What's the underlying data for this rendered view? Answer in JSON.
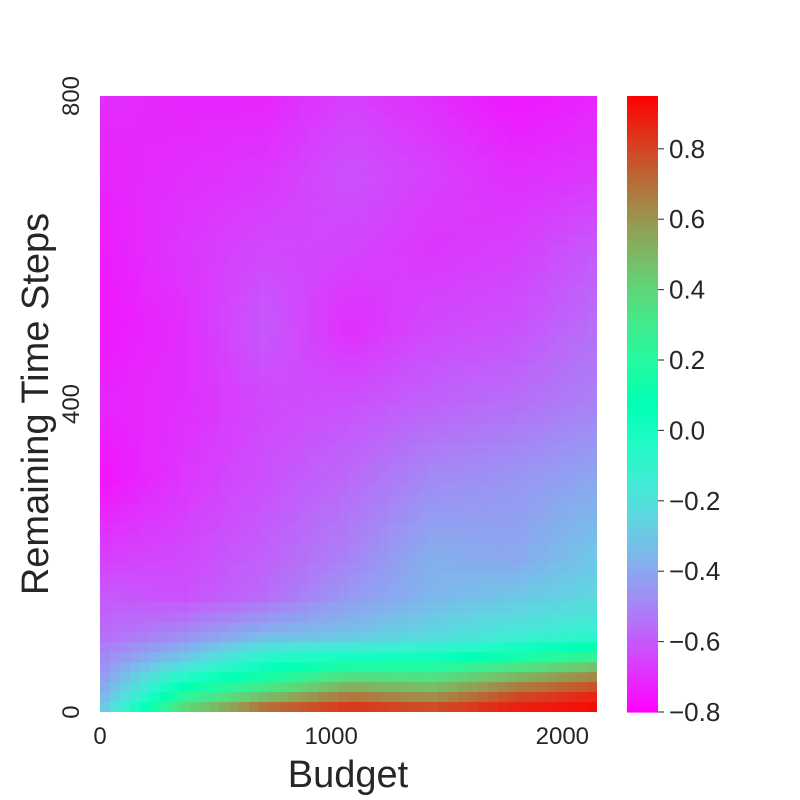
{
  "chart_data": {
    "type": "heatmap",
    "xlabel": "Budget",
    "ylabel": "Remaining Time Steps",
    "xlim": [
      0,
      2150
    ],
    "ylim": [
      0,
      800
    ],
    "xticks": [
      0,
      1000,
      2000
    ],
    "yticks": [
      0,
      400,
      800
    ],
    "colormap": "rainbow",
    "colorbar": {
      "min": -0.8,
      "max": 0.95,
      "ticks": [
        0.8,
        0.6,
        0.4,
        0.2,
        0.0,
        -0.2,
        -0.4,
        -0.6,
        -0.8
      ],
      "tick_labels": [
        "0.8",
        "0.6",
        "0.4",
        "0.2",
        "0.0",
        "−0.2",
        "−0.4",
        "−0.6",
        "−0.8"
      ]
    },
    "x": [
      0,
      358,
      717,
      1075,
      1433,
      1792,
      2150
    ],
    "y": [
      800,
      700,
      600,
      500,
      400,
      300,
      200,
      150,
      100,
      75,
      50,
      25,
      0
    ],
    "z": [
      [
        -0.7,
        -0.72,
        -0.72,
        -0.66,
        -0.7,
        -0.75,
        -0.72
      ],
      [
        -0.72,
        -0.7,
        -0.68,
        -0.62,
        -0.66,
        -0.7,
        -0.68
      ],
      [
        -0.74,
        -0.68,
        -0.64,
        -0.65,
        -0.68,
        -0.66,
        -0.6
      ],
      [
        -0.75,
        -0.7,
        -0.6,
        -0.7,
        -0.64,
        -0.62,
        -0.55
      ],
      [
        -0.72,
        -0.7,
        -0.64,
        -0.62,
        -0.58,
        -0.55,
        -0.5
      ],
      [
        -0.76,
        -0.68,
        -0.62,
        -0.56,
        -0.48,
        -0.45,
        -0.4
      ],
      [
        -0.66,
        -0.64,
        -0.58,
        -0.5,
        -0.38,
        -0.4,
        -0.3
      ],
      [
        -0.6,
        -0.62,
        -0.56,
        -0.44,
        -0.36,
        -0.3,
        -0.24
      ],
      [
        -0.56,
        -0.48,
        -0.36,
        -0.32,
        -0.24,
        -0.16,
        -0.1
      ],
      [
        -0.5,
        -0.34,
        -0.1,
        -0.06,
        -0.04,
        0.08,
        0.2
      ],
      [
        -0.46,
        -0.1,
        0.1,
        0.3,
        0.3,
        0.45,
        0.6
      ],
      [
        -0.4,
        0.15,
        0.4,
        0.62,
        0.55,
        0.75,
        0.85
      ],
      [
        -0.3,
        0.45,
        0.8,
        0.9,
        0.85,
        0.92,
        0.95
      ]
    ]
  }
}
